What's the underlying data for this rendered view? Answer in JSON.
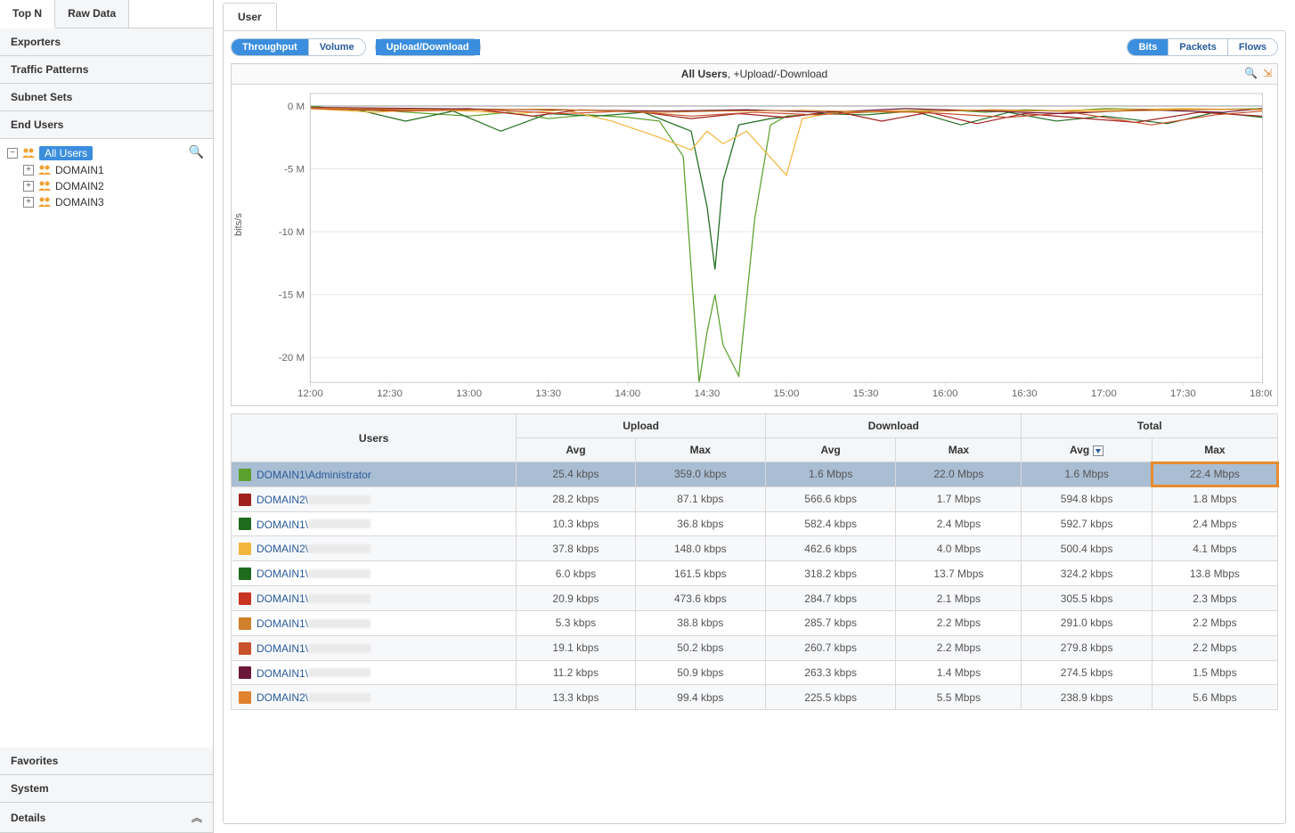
{
  "sidebar": {
    "tabs": [
      {
        "id": "topn",
        "label": "Top N",
        "active": true
      },
      {
        "id": "rawdata",
        "label": "Raw Data",
        "active": false
      }
    ],
    "sections": [
      "Exporters",
      "Traffic Patterns",
      "Subnet Sets",
      "End Users"
    ],
    "tree": {
      "root": {
        "label": "All Users",
        "selected": true
      },
      "children": [
        {
          "label": "DOMAIN1"
        },
        {
          "label": "DOMAIN2"
        },
        {
          "label": "DOMAIN3"
        }
      ]
    },
    "bottom": [
      "Favorites",
      "System",
      "Details"
    ]
  },
  "main": {
    "tab": "User",
    "toolbar": {
      "left_group": [
        {
          "label": "Throughput",
          "active": true
        },
        {
          "label": "Volume",
          "active": false
        }
      ],
      "solo": {
        "label": "Upload/Download"
      },
      "right_group": [
        {
          "label": "Bits",
          "active": true
        },
        {
          "label": "Packets",
          "active": false
        },
        {
          "label": "Flows",
          "active": false
        }
      ]
    },
    "chart": {
      "title_bold": "All Users",
      "title_rest": ", +Upload/-Download",
      "ylabel": "bits/s",
      "x_ticks": [
        "12:00",
        "12:30",
        "13:00",
        "13:30",
        "14:00",
        "14:30",
        "15:00",
        "15:30",
        "16:00",
        "16:30",
        "17:00",
        "17:30",
        "18:00"
      ],
      "y_ticks": [
        {
          "v": 0,
          "label": "0 M"
        },
        {
          "v": -5,
          "label": "-5 M"
        },
        {
          "v": -10,
          "label": "-10 M"
        },
        {
          "v": -15,
          "label": "-15 M"
        },
        {
          "v": -20,
          "label": "-20 M"
        }
      ],
      "x_range": [
        0,
        120
      ],
      "y_range": [
        -22,
        1
      ],
      "series": [
        {
          "color": "#5aa02c",
          "points": [
            [
              0,
              0
            ],
            [
              5,
              -0.3
            ],
            [
              10,
              -0.4
            ],
            [
              15,
              -0.6
            ],
            [
              20,
              -0.8
            ],
            [
              25,
              -0.5
            ],
            [
              30,
              -1.0
            ],
            [
              35,
              -0.7
            ],
            [
              40,
              -0.9
            ],
            [
              44,
              -1.2
            ],
            [
              47,
              -4.0
            ],
            [
              49,
              -22.0
            ],
            [
              50,
              -18.0
            ],
            [
              51,
              -15.0
            ],
            [
              52,
              -19.0
            ],
            [
              54,
              -21.5
            ],
            [
              56,
              -9.0
            ],
            [
              58,
              -1.5
            ],
            [
              60,
              -0.8
            ],
            [
              65,
              -0.6
            ],
            [
              70,
              -0.5
            ],
            [
              75,
              -0.4
            ],
            [
              80,
              -0.3
            ],
            [
              85,
              -0.5
            ],
            [
              90,
              -0.3
            ],
            [
              95,
              -0.4
            ],
            [
              100,
              -0.2
            ],
            [
              110,
              -0.3
            ],
            [
              120,
              -0.2
            ]
          ]
        },
        {
          "color": "#1e6b1e",
          "points": [
            [
              0,
              -0.2
            ],
            [
              6,
              -0.3
            ],
            [
              12,
              -1.2
            ],
            [
              18,
              -0.4
            ],
            [
              24,
              -2.0
            ],
            [
              30,
              -0.6
            ],
            [
              36,
              -0.8
            ],
            [
              42,
              -0.5
            ],
            [
              48,
              -2.0
            ],
            [
              50,
              -8.0
            ],
            [
              51,
              -13.0
            ],
            [
              52,
              -6.0
            ],
            [
              54,
              -1.5
            ],
            [
              58,
              -1.0
            ],
            [
              64,
              -0.6
            ],
            [
              70,
              -0.7
            ],
            [
              76,
              -0.4
            ],
            [
              82,
              -1.5
            ],
            [
              88,
              -0.5
            ],
            [
              94,
              -1.2
            ],
            [
              100,
              -0.8
            ],
            [
              108,
              -1.4
            ],
            [
              114,
              -0.5
            ],
            [
              120,
              -0.9
            ]
          ]
        },
        {
          "color": "#f3b63c",
          "points": [
            [
              0,
              -0.2
            ],
            [
              8,
              -0.5
            ],
            [
              14,
              -0.3
            ],
            [
              20,
              -0.4
            ],
            [
              26,
              -0.6
            ],
            [
              32,
              -0.3
            ],
            [
              38,
              -1.2
            ],
            [
              44,
              -2.5
            ],
            [
              48,
              -3.5
            ],
            [
              50,
              -2.0
            ],
            [
              52,
              -3.0
            ],
            [
              55,
              -2.0
            ],
            [
              60,
              -5.5
            ],
            [
              62,
              -1.0
            ],
            [
              66,
              -0.5
            ],
            [
              72,
              -0.4
            ],
            [
              80,
              -0.3
            ],
            [
              90,
              -0.4
            ],
            [
              100,
              -0.3
            ],
            [
              110,
              -0.2
            ],
            [
              120,
              -0.3
            ]
          ]
        },
        {
          "color": "#a11f1f",
          "points": [
            [
              0,
              -0.1
            ],
            [
              10,
              -0.3
            ],
            [
              20,
              -0.2
            ],
            [
              28,
              -0.8
            ],
            [
              34,
              -0.3
            ],
            [
              42,
              -0.5
            ],
            [
              48,
              -1.0
            ],
            [
              54,
              -0.6
            ],
            [
              60,
              -0.9
            ],
            [
              66,
              -0.4
            ],
            [
              72,
              -1.2
            ],
            [
              78,
              -0.5
            ],
            [
              84,
              -1.4
            ],
            [
              90,
              -0.6
            ],
            [
              96,
              -0.9
            ],
            [
              104,
              -1.3
            ],
            [
              112,
              -0.5
            ],
            [
              120,
              -0.8
            ]
          ]
        },
        {
          "color": "#c8502b",
          "points": [
            [
              0,
              -0.2
            ],
            [
              12,
              -0.4
            ],
            [
              22,
              -0.3
            ],
            [
              32,
              -0.6
            ],
            [
              40,
              -0.4
            ],
            [
              48,
              -0.8
            ],
            [
              56,
              -0.5
            ],
            [
              64,
              -0.7
            ],
            [
              72,
              -0.4
            ],
            [
              80,
              -0.6
            ],
            [
              88,
              -0.9
            ],
            [
              96,
              -0.5
            ],
            [
              106,
              -1.5
            ],
            [
              114,
              -0.7
            ],
            [
              120,
              -0.4
            ]
          ]
        },
        {
          "color": "#6b1739",
          "points": [
            [
              0,
              -0.1
            ],
            [
              15,
              -0.2
            ],
            [
              30,
              -0.3
            ],
            [
              45,
              -0.4
            ],
            [
              55,
              -0.3
            ],
            [
              65,
              -0.5
            ],
            [
              75,
              -0.2
            ],
            [
              85,
              -0.4
            ],
            [
              95,
              -0.6
            ],
            [
              105,
              -0.3
            ],
            [
              115,
              -0.5
            ],
            [
              120,
              -0.2
            ]
          ]
        },
        {
          "color": "#d07f2a",
          "points": [
            [
              0,
              -0.15
            ],
            [
              18,
              -0.3
            ],
            [
              30,
              -0.25
            ],
            [
              44,
              -0.5
            ],
            [
              52,
              -0.4
            ],
            [
              62,
              -0.35
            ],
            [
              74,
              -0.5
            ],
            [
              86,
              -0.3
            ],
            [
              98,
              -0.45
            ],
            [
              110,
              -0.3
            ],
            [
              120,
              -0.25
            ]
          ]
        }
      ]
    },
    "table": {
      "group_headers": [
        "Upload",
        "Download",
        "Total"
      ],
      "sub_headers": {
        "users": "Users",
        "avg": "Avg",
        "max": "Max"
      },
      "sort_col": "total_avg",
      "rows": [
        {
          "color": "#5aa02c",
          "user": "DOMAIN1\\Administrator",
          "redacted": false,
          "selected": true,
          "up_avg": "25.4 kbps",
          "up_max": "359.0 kbps",
          "dn_avg": "1.6 Mbps",
          "dn_max": "22.0 Mbps",
          "tot_avg": "1.6 Mbps",
          "tot_max": "22.4 Mbps",
          "highlight_max": true
        },
        {
          "color": "#a11f1f",
          "user": "DOMAIN2\\",
          "redacted": true,
          "up_avg": "28.2 kbps",
          "up_max": "87.1 kbps",
          "dn_avg": "566.6 kbps",
          "dn_max": "1.7 Mbps",
          "tot_avg": "594.8 kbps",
          "tot_max": "1.8 Mbps"
        },
        {
          "color": "#1e6b1e",
          "user": "DOMAIN1\\",
          "redacted": true,
          "up_avg": "10.3 kbps",
          "up_max": "36.8 kbps",
          "dn_avg": "582.4 kbps",
          "dn_max": "2.4 Mbps",
          "tot_avg": "592.7 kbps",
          "tot_max": "2.4 Mbps"
        },
        {
          "color": "#f3b63c",
          "user": "DOMAIN2\\",
          "redacted": true,
          "up_avg": "37.8 kbps",
          "up_max": "148.0 kbps",
          "dn_avg": "462.6 kbps",
          "dn_max": "4.0 Mbps",
          "tot_avg": "500.4 kbps",
          "tot_max": "4.1 Mbps"
        },
        {
          "color": "#1e6b1e",
          "user": "DOMAIN1\\",
          "redacted": true,
          "up_avg": "6.0 kbps",
          "up_max": "161.5 kbps",
          "dn_avg": "318.2 kbps",
          "dn_max": "13.7 Mbps",
          "tot_avg": "324.2 kbps",
          "tot_max": "13.8 Mbps"
        },
        {
          "color": "#c8341f",
          "user": "DOMAIN1\\",
          "redacted": true,
          "up_avg": "20.9 kbps",
          "up_max": "473.6 kbps",
          "dn_avg": "284.7 kbps",
          "dn_max": "2.1 Mbps",
          "tot_avg": "305.5 kbps",
          "tot_max": "2.3 Mbps"
        },
        {
          "color": "#d07f2a",
          "user": "DOMAIN1\\",
          "redacted": true,
          "up_avg": "5.3 kbps",
          "up_max": "38.8 kbps",
          "dn_avg": "285.7 kbps",
          "dn_max": "2.2 Mbps",
          "tot_avg": "291.0 kbps",
          "tot_max": "2.2 Mbps"
        },
        {
          "color": "#c8502b",
          "user": "DOMAIN1\\",
          "redacted": true,
          "up_avg": "19.1 kbps",
          "up_max": "50.2 kbps",
          "dn_avg": "260.7 kbps",
          "dn_max": "2.2 Mbps",
          "tot_avg": "279.8 kbps",
          "tot_max": "2.2 Mbps"
        },
        {
          "color": "#6b1739",
          "user": "DOMAIN1\\",
          "redacted": true,
          "up_avg": "11.2 kbps",
          "up_max": "50.9 kbps",
          "dn_avg": "263.3 kbps",
          "dn_max": "1.4 Mbps",
          "tot_avg": "274.5 kbps",
          "tot_max": "1.5 Mbps"
        },
        {
          "color": "#e0822e",
          "user": "DOMAIN2\\",
          "redacted": true,
          "up_avg": "13.3 kbps",
          "up_max": "99.4 kbps",
          "dn_avg": "225.5 kbps",
          "dn_max": "5.5 Mbps",
          "tot_avg": "238.9 kbps",
          "tot_max": "5.6 Mbps"
        }
      ]
    }
  }
}
